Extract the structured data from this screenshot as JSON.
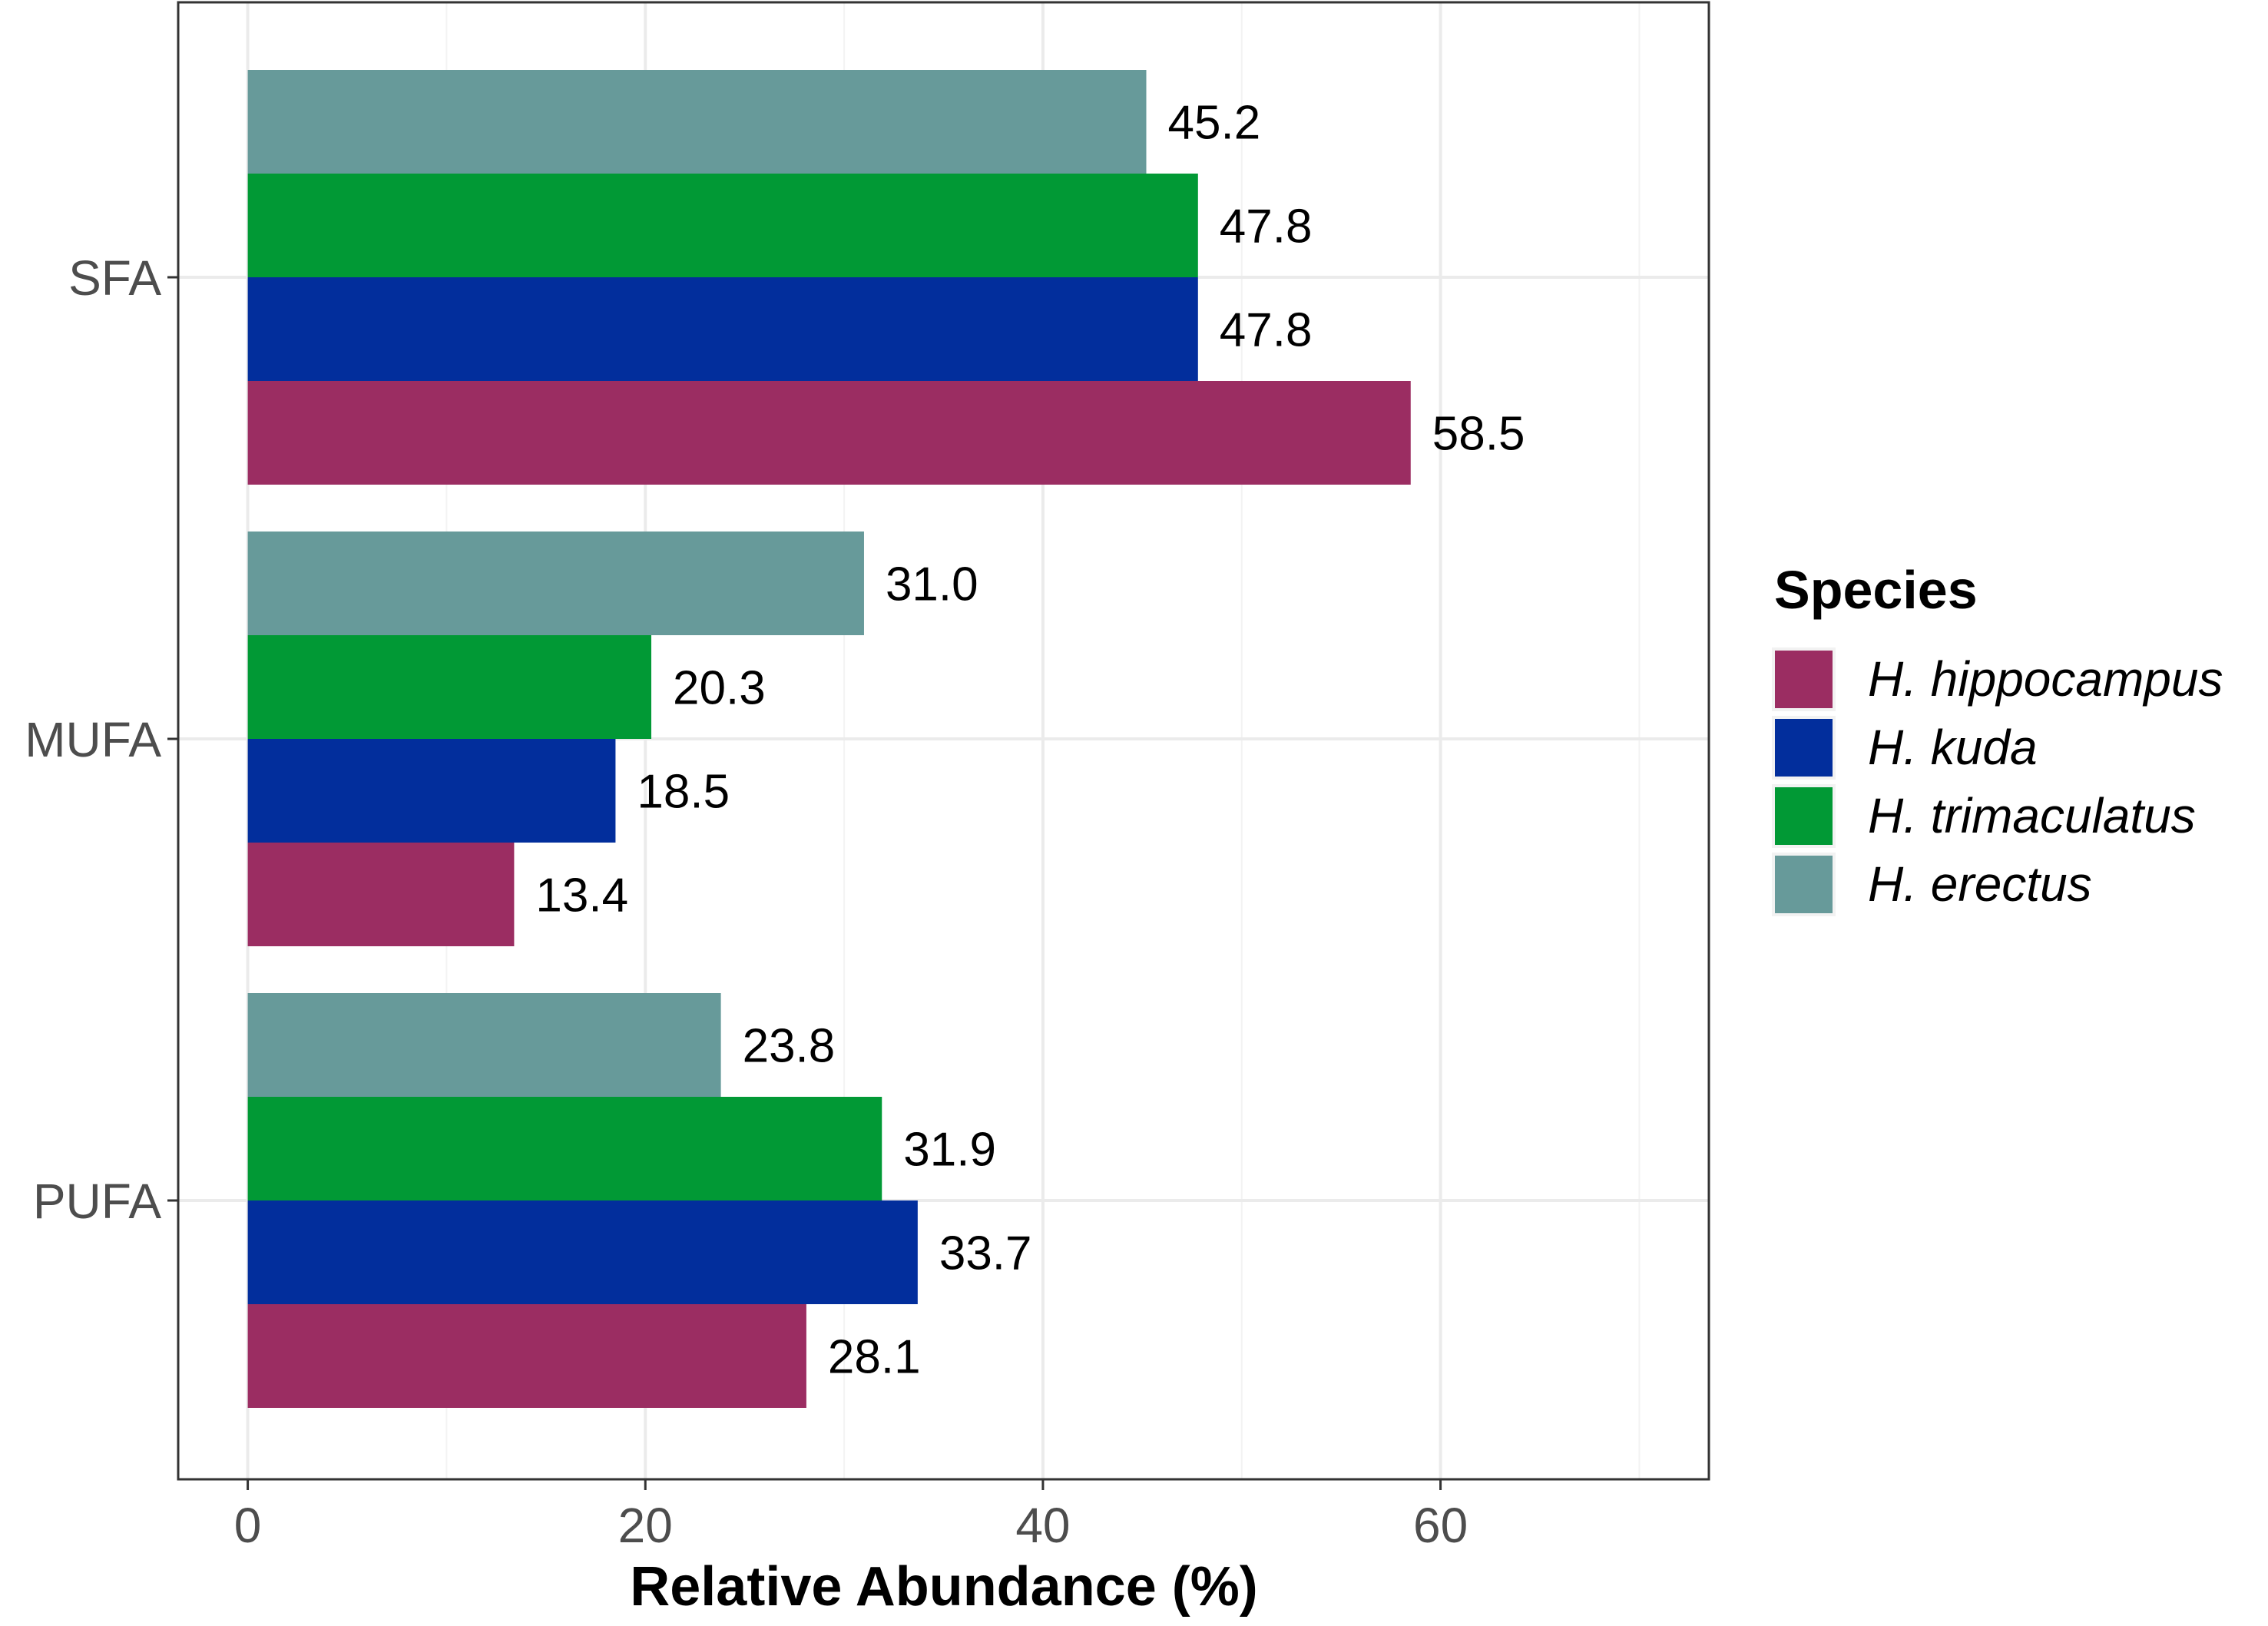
{
  "chart_data": {
    "type": "bar",
    "orientation": "horizontal",
    "categories": [
      "SFA",
      "MUFA",
      "PUFA"
    ],
    "series": [
      {
        "name": "H. hippocampus",
        "color": "#9b2d62",
        "values": [
          58.5,
          13.4,
          28.1
        ]
      },
      {
        "name": "H. kuda",
        "color": "#022e9c",
        "values": [
          47.8,
          18.5,
          33.7
        ]
      },
      {
        "name": "H. trimaculatus",
        "color": "#019935",
        "values": [
          47.8,
          20.3,
          31.9
        ]
      },
      {
        "name": "H. erectus",
        "color": "#679a9a",
        "values": [
          45.2,
          31.0,
          23.8
        ]
      }
    ],
    "value_labels": [
      [
        "58.5",
        "13.4",
        "28.1"
      ],
      [
        "47.8",
        "18.5",
        "33.7"
      ],
      [
        "47.8",
        "20.3",
        "31.9"
      ],
      [
        "45.2",
        "31.0",
        "23.8"
      ]
    ],
    "xlabel": "Relative Abundance (%)",
    "ylabel": "",
    "xlim": [
      -3.5,
      73.5
    ],
    "xticks": [
      0,
      20,
      40,
      60
    ],
    "xtick_labels": [
      "0",
      "20",
      "40",
      "60"
    ],
    "grid": true,
    "legend": {
      "title": "Species",
      "position": "right"
    }
  }
}
